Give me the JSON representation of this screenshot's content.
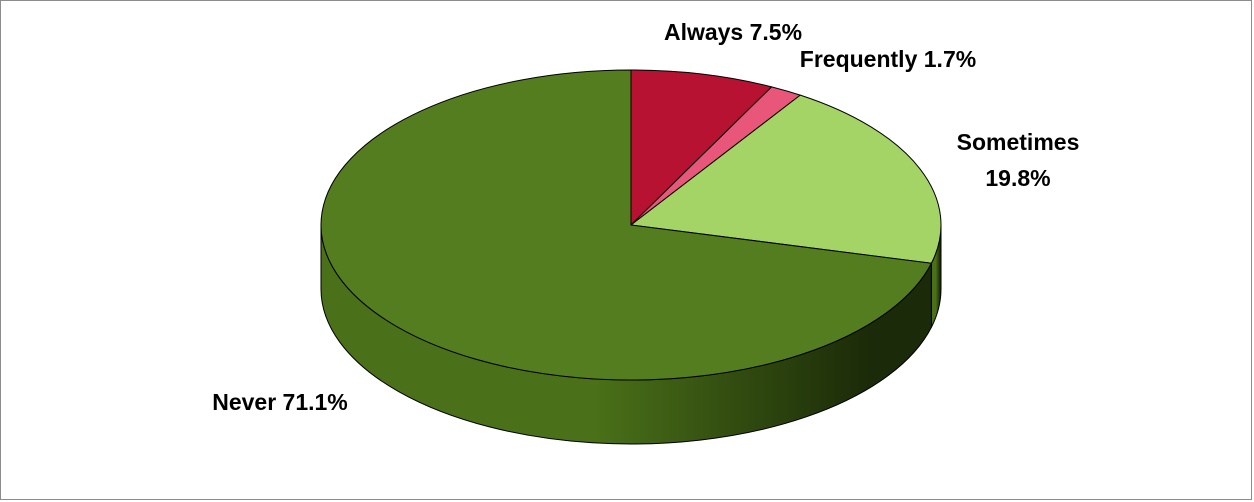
{
  "chart_data": {
    "type": "pie",
    "title": "",
    "three_d": true,
    "slices": [
      {
        "category": "Always",
        "label_lines": [
          "Always 7.5%"
        ],
        "value": 7.5,
        "color": "#b71232"
      },
      {
        "category": "Frequently",
        "label_lines": [
          "Frequently 1.7%"
        ],
        "value": 1.7,
        "color": "#e8577a"
      },
      {
        "category": "Sometimes",
        "label_lines": [
          "Sometimes",
          "19.8%"
        ],
        "value": 19.8,
        "color": "#a4d466"
      },
      {
        "category": "Never",
        "label_lines": [
          "Never 71.1%"
        ],
        "value": 71.1,
        "color": "#547d20"
      }
    ],
    "side_colors": {
      "light": "#4a7019",
      "dark": "#1b2a08"
    },
    "legend": "none"
  }
}
